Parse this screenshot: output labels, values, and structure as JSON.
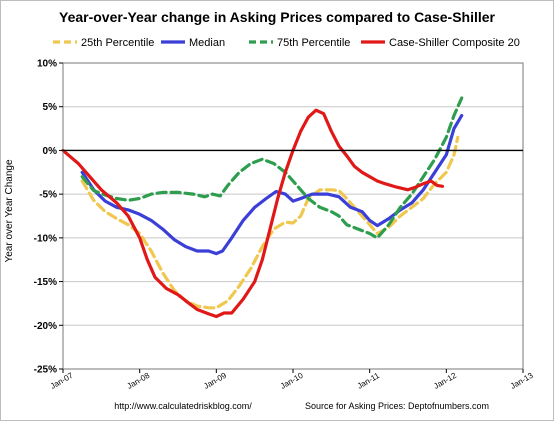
{
  "chart_data": {
    "type": "line",
    "title": "Year-over-Year change in Asking Prices compared to Case-Shiller",
    "ylabel": "Year over Year Change",
    "xlabel": "",
    "ylim": [
      -25,
      10
    ],
    "xlim": [
      2007.0,
      2013.0
    ],
    "y_ticks": [
      "10%",
      "5%",
      "0%",
      "-5%",
      "-10%",
      "-15%",
      "-20%",
      "-25%"
    ],
    "x_ticks": [
      "Jan-07",
      "Jan-08",
      "Jan-09",
      "Jan-10",
      "Jan-11",
      "Jan-12",
      "Jan-13"
    ],
    "grid": "horizontal",
    "legend": "top",
    "series": [
      {
        "name": "25th Percentile",
        "color": "#F0C850",
        "style": "dashed",
        "points": [
          [
            2007.25,
            -3.5
          ],
          [
            2007.4,
            -5.7
          ],
          [
            2007.55,
            -7.0
          ],
          [
            2007.7,
            -7.8
          ],
          [
            2007.85,
            -8.5
          ],
          [
            2008.0,
            -9.5
          ],
          [
            2008.15,
            -11.5
          ],
          [
            2008.3,
            -14.0
          ],
          [
            2008.45,
            -16.0
          ],
          [
            2008.6,
            -17.2
          ],
          [
            2008.75,
            -17.8
          ],
          [
            2008.9,
            -18.0
          ],
          [
            2009.0,
            -18.0
          ],
          [
            2009.15,
            -17.2
          ],
          [
            2009.3,
            -15.5
          ],
          [
            2009.45,
            -13.5
          ],
          [
            2009.6,
            -11.0
          ],
          [
            2009.75,
            -9.0
          ],
          [
            2009.9,
            -8.2
          ],
          [
            2010.0,
            -8.3
          ],
          [
            2010.1,
            -7.5
          ],
          [
            2010.2,
            -5.5
          ],
          [
            2010.35,
            -4.5
          ],
          [
            2010.5,
            -4.5
          ],
          [
            2010.6,
            -4.6
          ],
          [
            2010.7,
            -5.5
          ],
          [
            2010.85,
            -7.0
          ],
          [
            2011.0,
            -8.5
          ],
          [
            2011.1,
            -9.5
          ],
          [
            2011.25,
            -8.8
          ],
          [
            2011.4,
            -7.5
          ],
          [
            2011.55,
            -6.5
          ],
          [
            2011.7,
            -5.5
          ],
          [
            2011.85,
            -3.8
          ],
          [
            2012.0,
            -2.5
          ],
          [
            2012.1,
            -0.5
          ],
          [
            2012.15,
            1.5
          ]
        ]
      },
      {
        "name": "Median",
        "color": "#3B3FD8",
        "style": "solid",
        "points": [
          [
            2007.25,
            -2.5
          ],
          [
            2007.4,
            -4.5
          ],
          [
            2007.55,
            -5.8
          ],
          [
            2007.7,
            -6.5
          ],
          [
            2007.85,
            -6.8
          ],
          [
            2008.0,
            -7.3
          ],
          [
            2008.15,
            -8.0
          ],
          [
            2008.3,
            -9.0
          ],
          [
            2008.45,
            -10.2
          ],
          [
            2008.6,
            -11.0
          ],
          [
            2008.75,
            -11.5
          ],
          [
            2008.9,
            -11.5
          ],
          [
            2009.0,
            -11.8
          ],
          [
            2009.08,
            -11.5
          ],
          [
            2009.2,
            -10.0
          ],
          [
            2009.35,
            -8.0
          ],
          [
            2009.5,
            -6.5
          ],
          [
            2009.65,
            -5.5
          ],
          [
            2009.78,
            -4.7
          ],
          [
            2009.9,
            -5.0
          ],
          [
            2010.0,
            -5.8
          ],
          [
            2010.1,
            -5.5
          ],
          [
            2010.25,
            -5.0
          ],
          [
            2010.45,
            -5.0
          ],
          [
            2010.6,
            -5.3
          ],
          [
            2010.75,
            -6.5
          ],
          [
            2010.9,
            -7.0
          ],
          [
            2011.0,
            -8.0
          ],
          [
            2011.1,
            -8.6
          ],
          [
            2011.25,
            -7.8
          ],
          [
            2011.4,
            -6.8
          ],
          [
            2011.55,
            -6.0
          ],
          [
            2011.7,
            -4.5
          ],
          [
            2011.85,
            -2.5
          ],
          [
            2012.0,
            -0.5
          ],
          [
            2012.1,
            2.5
          ],
          [
            2012.2,
            4.0
          ]
        ]
      },
      {
        "name": "75th Percentile",
        "color": "#2E9E4E",
        "style": "dashed",
        "points": [
          [
            2007.25,
            -3.0
          ],
          [
            2007.4,
            -4.6
          ],
          [
            2007.55,
            -5.1
          ],
          [
            2007.7,
            -5.5
          ],
          [
            2007.85,
            -5.7
          ],
          [
            2008.0,
            -5.5
          ],
          [
            2008.15,
            -5.0
          ],
          [
            2008.3,
            -4.8
          ],
          [
            2008.5,
            -4.8
          ],
          [
            2008.7,
            -5.0
          ],
          [
            2008.85,
            -5.3
          ],
          [
            2008.95,
            -5.0
          ],
          [
            2009.05,
            -5.2
          ],
          [
            2009.15,
            -4.0
          ],
          [
            2009.3,
            -2.5
          ],
          [
            2009.45,
            -1.5
          ],
          [
            2009.6,
            -1.0
          ],
          [
            2009.75,
            -1.5
          ],
          [
            2009.9,
            -2.5
          ],
          [
            2010.0,
            -3.5
          ],
          [
            2010.1,
            -4.5
          ],
          [
            2010.2,
            -5.5
          ],
          [
            2010.35,
            -6.5
          ],
          [
            2010.5,
            -7.0
          ],
          [
            2010.6,
            -7.5
          ],
          [
            2010.7,
            -8.5
          ],
          [
            2010.85,
            -9.0
          ],
          [
            2011.0,
            -9.5
          ],
          [
            2011.1,
            -10.0
          ],
          [
            2011.25,
            -8.5
          ],
          [
            2011.4,
            -6.5
          ],
          [
            2011.55,
            -5.0
          ],
          [
            2011.7,
            -3.0
          ],
          [
            2011.85,
            -1.0
          ],
          [
            2012.0,
            1.5
          ],
          [
            2012.1,
            4.0
          ],
          [
            2012.2,
            6.0
          ]
        ]
      },
      {
        "name": "Case-Shiller Composite 20",
        "color": "#E01818",
        "style": "solid",
        "points": [
          [
            2007.0,
            0.0
          ],
          [
            2007.08,
            -0.6
          ],
          [
            2007.2,
            -1.5
          ],
          [
            2007.35,
            -3.0
          ],
          [
            2007.5,
            -4.5
          ],
          [
            2007.7,
            -6.0
          ],
          [
            2007.85,
            -7.5
          ],
          [
            2008.0,
            -10.0
          ],
          [
            2008.1,
            -12.5
          ],
          [
            2008.2,
            -14.5
          ],
          [
            2008.35,
            -15.8
          ],
          [
            2008.5,
            -16.5
          ],
          [
            2008.6,
            -17.2
          ],
          [
            2008.75,
            -18.2
          ],
          [
            2008.9,
            -18.7
          ],
          [
            2009.0,
            -19.0
          ],
          [
            2009.1,
            -18.6
          ],
          [
            2009.2,
            -18.6
          ],
          [
            2009.35,
            -17.0
          ],
          [
            2009.5,
            -15.0
          ],
          [
            2009.6,
            -12.5
          ],
          [
            2009.7,
            -9.0
          ],
          [
            2009.8,
            -5.5
          ],
          [
            2009.9,
            -2.5
          ],
          [
            2010.0,
            0.0
          ],
          [
            2010.1,
            2.2
          ],
          [
            2010.2,
            3.8
          ],
          [
            2010.3,
            4.6
          ],
          [
            2010.4,
            4.2
          ],
          [
            2010.5,
            2.2
          ],
          [
            2010.6,
            0.5
          ],
          [
            2010.7,
            -0.6
          ],
          [
            2010.8,
            -1.8
          ],
          [
            2010.9,
            -2.5
          ],
          [
            2011.0,
            -3.0
          ],
          [
            2011.1,
            -3.5
          ],
          [
            2011.2,
            -3.8
          ],
          [
            2011.35,
            -4.2
          ],
          [
            2011.5,
            -4.5
          ],
          [
            2011.6,
            -4.2
          ],
          [
            2011.7,
            -3.8
          ],
          [
            2011.8,
            -3.5
          ],
          [
            2011.88,
            -4.0
          ],
          [
            2011.95,
            -4.1
          ]
        ]
      }
    ],
    "footer_left": "http://www.calculatedriskblog.com/",
    "footer_right": "Source for Asking Prices: Deptofnumbers.com"
  }
}
